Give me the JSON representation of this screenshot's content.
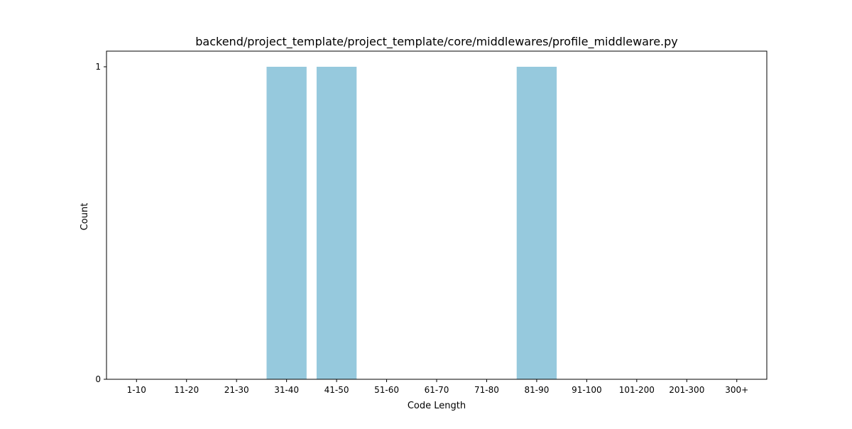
{
  "chart_data": {
    "type": "bar",
    "title": "backend/project_template/project_template/core/middlewares/profile_middleware.py",
    "xlabel": "Code Length",
    "ylabel": "Count",
    "categories": [
      "1-10",
      "11-20",
      "21-30",
      "31-40",
      "41-50",
      "51-60",
      "61-70",
      "71-80",
      "81-90",
      "91-100",
      "101-200",
      "201-300",
      "300+"
    ],
    "values": [
      0,
      0,
      0,
      1,
      1,
      0,
      0,
      0,
      1,
      0,
      0,
      0,
      0
    ],
    "yticks": [
      "0",
      "1"
    ],
    "ylim": [
      0,
      1.05
    ],
    "grid": false,
    "bar_color": "#96c9dd"
  }
}
